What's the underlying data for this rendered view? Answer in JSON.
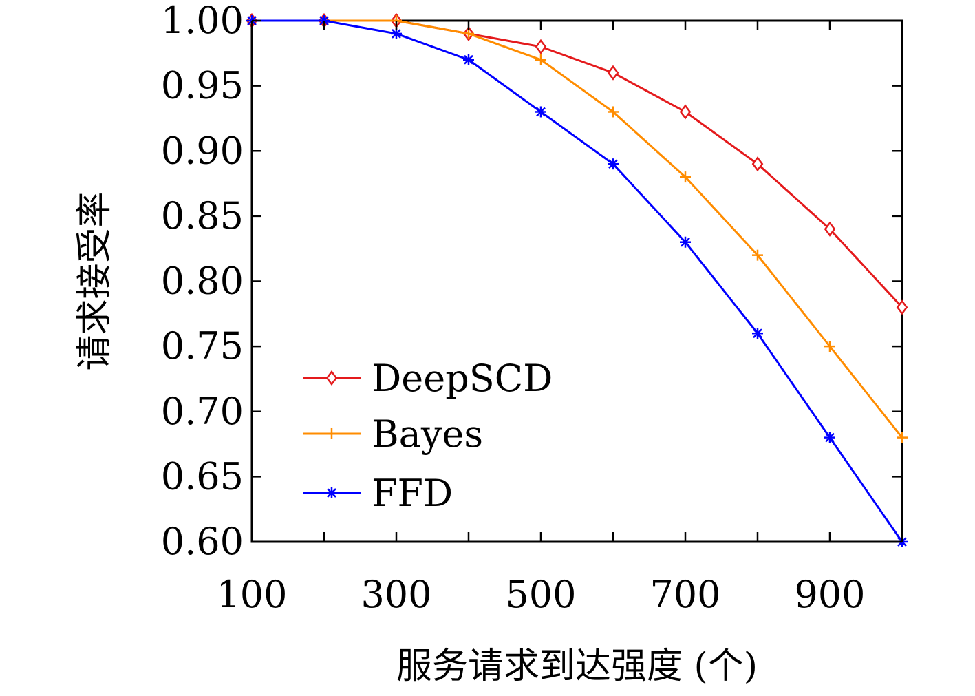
{
  "chart_data": {
    "type": "line",
    "title": "",
    "xlabel": "服务请求到达强度 (个)",
    "ylabel": "请求接受率",
    "x": [
      100,
      200,
      300,
      400,
      500,
      600,
      700,
      800,
      900,
      1000
    ],
    "xlim": [
      100,
      1000
    ],
    "ylim": [
      0.6,
      1.0
    ],
    "xticks": [
      "100",
      "300",
      "500",
      "700",
      "900"
    ],
    "xtick_values": [
      100,
      300,
      500,
      700,
      900
    ],
    "yticks": [
      "0.60",
      "0.65",
      "0.70",
      "0.75",
      "0.80",
      "0.85",
      "0.90",
      "0.95",
      "1.00"
    ],
    "ytick_values": [
      0.6,
      0.65,
      0.7,
      0.75,
      0.8,
      0.85,
      0.9,
      0.95,
      1.0
    ],
    "grid": false,
    "legend_position": "bottom-left",
    "series": [
      {
        "name": "DeepSCD",
        "color": "#e41a1c",
        "marker": "diamond",
        "values": [
          1.0,
          1.0,
          1.0,
          0.99,
          0.98,
          0.96,
          0.93,
          0.89,
          0.84,
          0.78
        ]
      },
      {
        "name": "Bayes",
        "color": "#ff8c00",
        "marker": "plus",
        "values": [
          1.0,
          1.0,
          1.0,
          0.99,
          0.97,
          0.93,
          0.88,
          0.82,
          0.75,
          0.68
        ]
      },
      {
        "name": "FFD",
        "color": "#0000ff",
        "marker": "asterisk",
        "values": [
          1.0,
          1.0,
          0.99,
          0.97,
          0.93,
          0.89,
          0.83,
          0.76,
          0.68,
          0.6
        ]
      }
    ]
  }
}
